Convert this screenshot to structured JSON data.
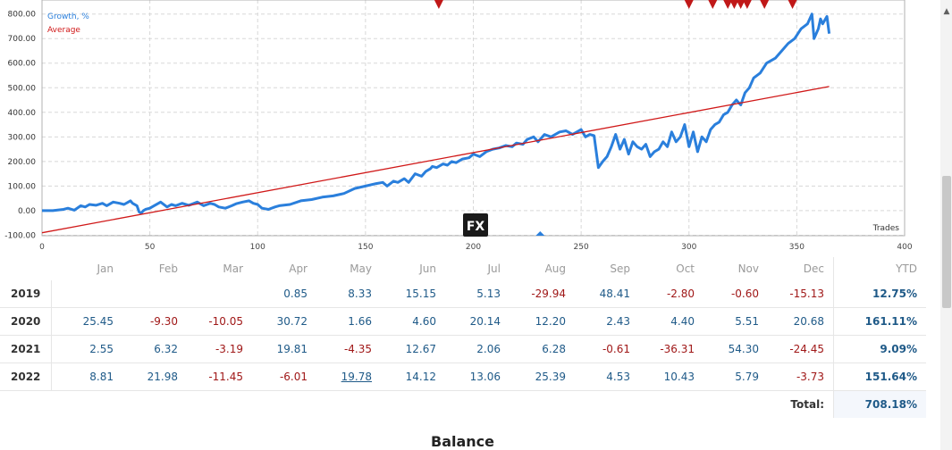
{
  "chart_data": {
    "type": "line",
    "legend": [
      {
        "label": "Growth, %",
        "color": "#2a7fdc"
      },
      {
        "label": "Average",
        "color": "#d01818"
      }
    ],
    "legend_position": "top-left",
    "x_label": "Trades",
    "xlim": [
      0,
      400
    ],
    "ylim": [
      -100,
      850
    ],
    "x_ticks": [
      0,
      50,
      100,
      150,
      200,
      250,
      300,
      350,
      400
    ],
    "y_ticks": [
      -100,
      0,
      100,
      200,
      300,
      400,
      500,
      600,
      700,
      800
    ],
    "y_tick_labels": [
      "-100.00",
      "0.00",
      "100.00",
      "200.00",
      "300.00",
      "400.00",
      "500.00",
      "600.00",
      "700.00",
      "800.00"
    ],
    "grid": true,
    "series": [
      {
        "name": "Growth, %",
        "color": "#2a7fdc",
        "x": [
          0,
          5,
          10,
          12,
          15,
          18,
          20,
          22,
          25,
          28,
          30,
          33,
          36,
          38,
          40,
          41,
          42,
          44,
          45,
          46,
          47,
          48,
          50,
          52,
          55,
          58,
          60,
          62,
          65,
          68,
          70,
          72,
          75,
          78,
          80,
          82,
          85,
          88,
          90,
          93,
          96,
          98,
          100,
          102,
          105,
          108,
          110,
          115,
          120,
          125,
          130,
          135,
          140,
          145,
          150,
          155,
          158,
          160,
          163,
          165,
          168,
          170,
          173,
          176,
          178,
          180,
          181,
          183,
          186,
          188,
          190,
          192,
          195,
          198,
          200,
          203,
          206,
          209,
          212,
          215,
          218,
          220,
          223,
          225,
          228,
          230,
          233,
          236,
          240,
          243,
          246,
          250,
          252,
          254,
          256,
          258,
          260,
          262,
          264,
          266,
          268,
          270,
          272,
          274,
          276,
          278,
          280,
          282,
          284,
          286,
          288,
          290,
          292,
          294,
          296,
          298,
          300,
          302,
          304,
          306,
          308,
          310,
          312,
          314,
          316,
          318,
          320,
          322,
          323,
          324,
          326,
          328,
          330,
          333,
          336,
          340,
          343,
          346,
          349,
          352,
          355,
          357,
          358,
          360,
          361,
          362,
          364,
          365
        ],
        "y": [
          0,
          0,
          5,
          10,
          2,
          20,
          15,
          25,
          22,
          30,
          20,
          35,
          30,
          25,
          35,
          40,
          30,
          20,
          -5,
          -10,
          0,
          5,
          10,
          20,
          35,
          15,
          25,
          20,
          30,
          22,
          28,
          35,
          20,
          30,
          25,
          15,
          10,
          20,
          28,
          35,
          40,
          30,
          25,
          10,
          5,
          15,
          20,
          25,
          40,
          45,
          55,
          60,
          70,
          90,
          100,
          110,
          115,
          100,
          120,
          115,
          130,
          115,
          150,
          140,
          160,
          170,
          180,
          175,
          190,
          185,
          200,
          195,
          210,
          215,
          230,
          220,
          240,
          250,
          255,
          265,
          260,
          275,
          270,
          290,
          300,
          280,
          310,
          300,
          320,
          325,
          310,
          330,
          300,
          310,
          305,
          175,
          200,
          220,
          260,
          310,
          250,
          290,
          230,
          280,
          260,
          250,
          270,
          220,
          240,
          250,
          280,
          260,
          320,
          280,
          300,
          350,
          260,
          320,
          240,
          300,
          280,
          330,
          350,
          360,
          390,
          400,
          430,
          450,
          440,
          430,
          480,
          500,
          540,
          560,
          600,
          620,
          650,
          680,
          700,
          740,
          760,
          800,
          700,
          740,
          780,
          760,
          790,
          720
        ],
        "stroke_width_note": "thick"
      },
      {
        "name": "Average",
        "color": "#d01818",
        "x": [
          0,
          365
        ],
        "y": [
          -90,
          505
        ]
      }
    ],
    "markers_top": [
      {
        "x": 184,
        "color": "#c01818"
      },
      {
        "x": 300,
        "color": "#c01818"
      },
      {
        "x": 311,
        "color": "#c01818"
      },
      {
        "x": 318,
        "color": "#c01818"
      },
      {
        "x": 321,
        "color": "#c01818"
      },
      {
        "x": 324,
        "color": "#c01818"
      },
      {
        "x": 327,
        "color": "#c01818"
      },
      {
        "x": 335,
        "color": "#c01818"
      },
      {
        "x": 348,
        "color": "#c01818"
      }
    ],
    "markers_bottom": [
      {
        "x": 231,
        "color": "#2a7fdc"
      }
    ]
  },
  "table": {
    "months": [
      "Jan",
      "Feb",
      "Mar",
      "Apr",
      "May",
      "Jun",
      "Jul",
      "Aug",
      "Sep",
      "Oct",
      "Nov",
      "Dec"
    ],
    "ytd_label": "YTD",
    "rows": [
      {
        "year": "2019",
        "values": [
          "",
          "",
          "",
          "0.85",
          "8.33",
          "15.15",
          "5.13",
          "-29.94",
          "48.41",
          "-2.80",
          "-0.60",
          "-15.13"
        ],
        "ytd": "12.75%"
      },
      {
        "year": "2020",
        "values": [
          "25.45",
          "-9.30",
          "-10.05",
          "30.72",
          "1.66",
          "4.60",
          "20.14",
          "12.20",
          "2.43",
          "4.40",
          "5.51",
          "20.68"
        ],
        "ytd": "161.11%"
      },
      {
        "year": "2021",
        "values": [
          "2.55",
          "6.32",
          "-3.19",
          "19.81",
          "-4.35",
          "12.67",
          "2.06",
          "6.28",
          "-0.61",
          "-36.31",
          "54.30",
          "-24.45"
        ],
        "ytd": "9.09%"
      },
      {
        "year": "2022",
        "values": [
          "8.81",
          "21.98",
          "-11.45",
          "-6.01",
          "19.78",
          "14.12",
          "13.06",
          "25.39",
          "4.53",
          "10.43",
          "5.79",
          "-3.73"
        ],
        "ytd": "151.64%"
      }
    ],
    "total_label": "Total:",
    "total_value": "708.18%"
  },
  "watermark": "FX",
  "section_title": "Balance",
  "scroll_up_icon": "triangle-up-icon"
}
